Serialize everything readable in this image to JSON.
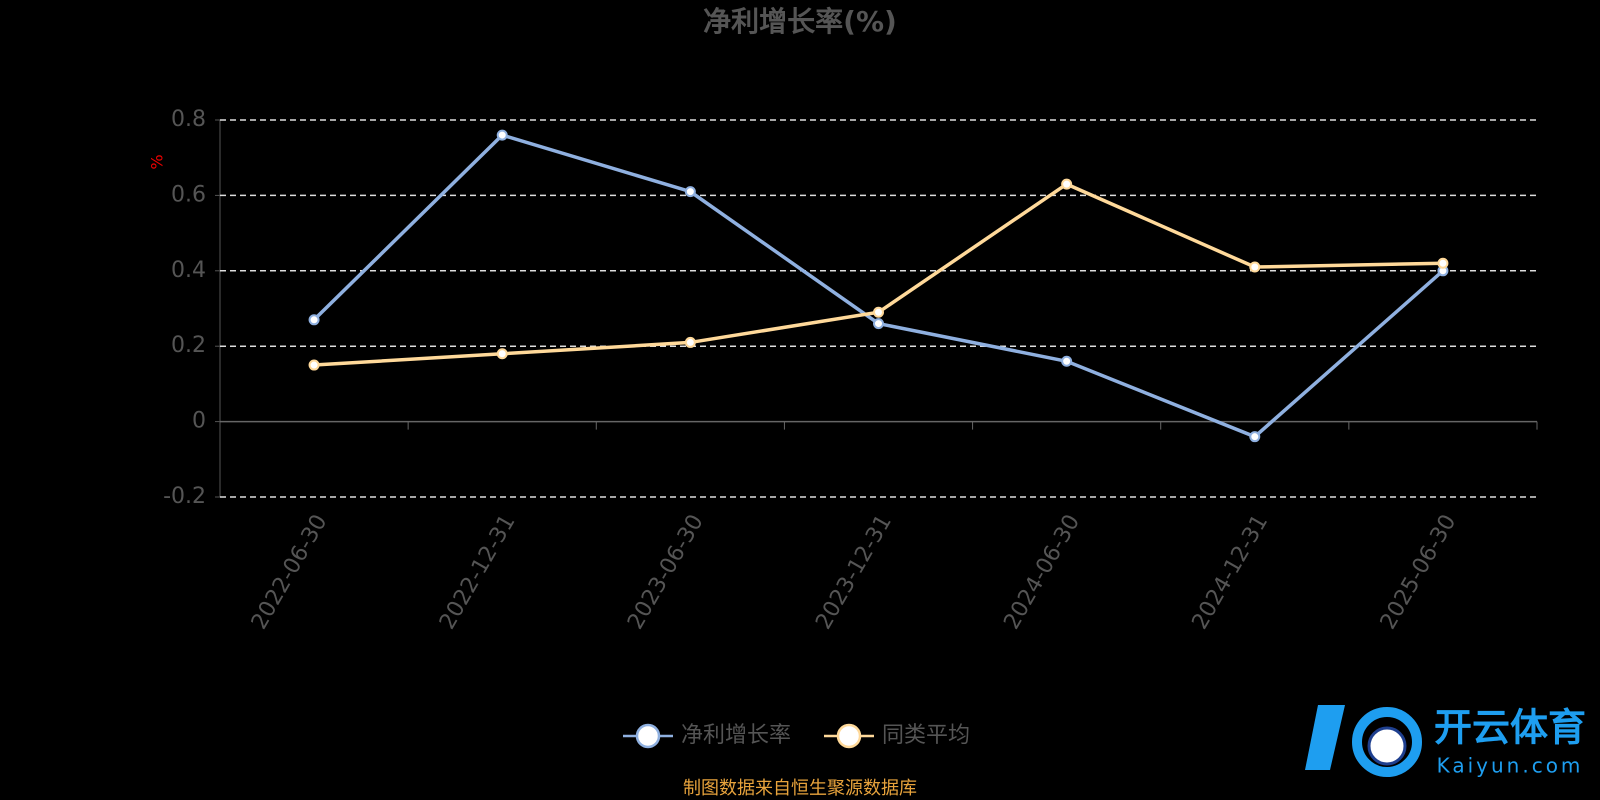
{
  "chart_data": {
    "type": "line",
    "title": "净利增长率(%)",
    "y_label": "%",
    "categories": [
      "2022-06-30",
      "2022-12-31",
      "2023-06-30",
      "2023-12-31",
      "2024-06-30",
      "2024-12-31",
      "2025-06-30"
    ],
    "series": [
      {
        "name": "净利增长率",
        "color": "#8fb0e0",
        "values": [
          0.27,
          0.76,
          0.61,
          0.26,
          0.16,
          -0.04,
          0.4
        ]
      },
      {
        "name": "同类平均",
        "color": "#ffd99a",
        "values": [
          0.15,
          0.18,
          0.21,
          0.29,
          0.63,
          0.41,
          0.42
        ]
      }
    ],
    "ylim": [
      -0.2,
      0.8
    ],
    "yticks": [
      -0.2,
      0,
      0.2,
      0.4,
      0.6,
      0.8
    ],
    "grid": true,
    "source": "制图数据来自恒生聚源数据库"
  },
  "watermark": {
    "brand": "开云体育",
    "site": "Kaiyun.com"
  }
}
